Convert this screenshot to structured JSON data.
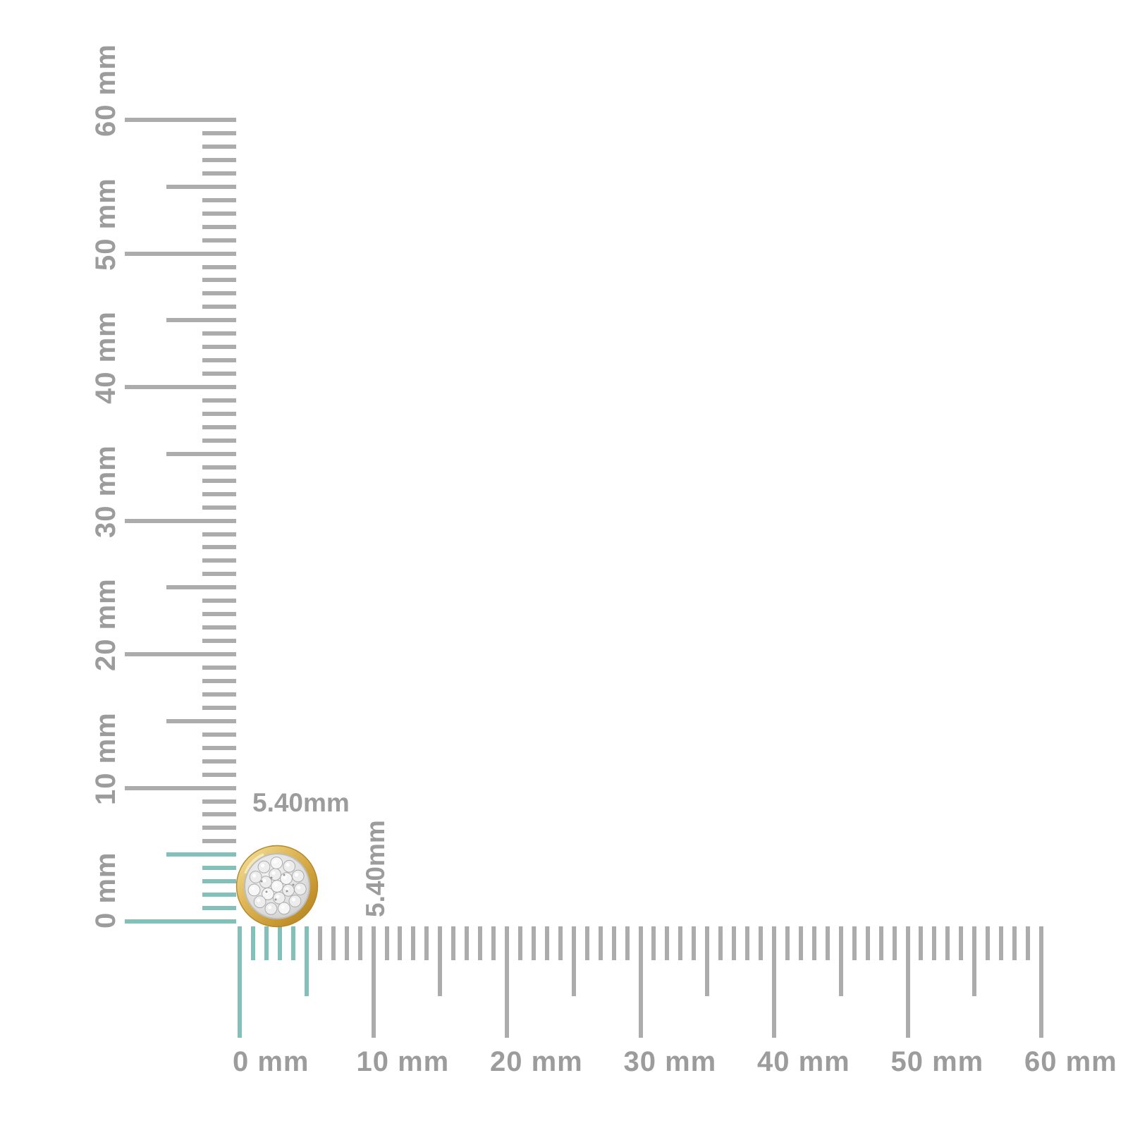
{
  "measurement": {
    "width_label": "5.40mm",
    "height_label": "5.40mm"
  },
  "ruler_config": {
    "unit": "mm",
    "max_mm": 60,
    "minor_step_mm": 1,
    "medium_step_mm": 5,
    "major_step_mm": 10,
    "highlight_up_to_mm": 5.4
  },
  "horizontal_ruler": {
    "labels": [
      "0 mm",
      "10 mm",
      "20 mm",
      "30 mm",
      "40 mm",
      "50 mm",
      "60 mm"
    ]
  },
  "vertical_ruler": {
    "labels": [
      "0 mm",
      "10 mm",
      "20 mm",
      "30 mm",
      "40 mm",
      "50 mm",
      "60 mm"
    ]
  },
  "item": {
    "description": "round pave diamond cluster stud with yellow gold bezel"
  },
  "colors": {
    "background": "#FFFFFF",
    "tick_gray": "#ACACAC",
    "label_gray": "#9C9C9C",
    "highlight_teal": "#82C0B9",
    "gold_light": "#F6E7AC",
    "gold_mid": "#E2BC5F",
    "gold_deep": "#C6952F",
    "gold_dark": "#A87A1E",
    "pave_silver": "#DDDDDD",
    "pave_stroke": "#ABABAB"
  }
}
